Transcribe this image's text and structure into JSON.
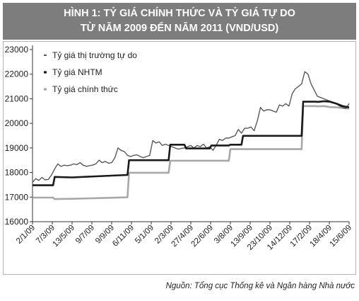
{
  "header": {
    "line1": "HÌNH 1: TỶ GIÁ CHÍNH THỨC VÀ TỶ GIÁ TỰ DO",
    "line2": "TỪ NĂM 2009 ĐẾN NĂM 2011 (VND/USD)"
  },
  "source": "Nguồn: Tổng cục Thống kê và Ngân hàng Nhà nước",
  "chart_data": {
    "type": "line",
    "title": "HÌNH 1: TỶ GIÁ CHÍNH THỨC VÀ TỶ GIÁ TỰ DO TỪ NĂM 2009 ĐẾN NĂM 2011 (VND/USD)",
    "ylim": [
      16000,
      23000
    ],
    "yticks": [
      16000,
      17000,
      18000,
      19000,
      20000,
      21000,
      22000,
      23000
    ],
    "xlim": [
      0,
      1
    ],
    "xticks": [
      {
        "label": "2/1/09",
        "x": 0.0
      },
      {
        "label": "7/3/09",
        "x": 0.0625
      },
      {
        "label": "13/5/09",
        "x": 0.125
      },
      {
        "label": "9/7/09",
        "x": 0.1875
      },
      {
        "label": "9/9/09",
        "x": 0.25
      },
      {
        "label": "6/11/09",
        "x": 0.3125
      },
      {
        "label": "5/1/09",
        "x": 0.375
      },
      {
        "label": "2/3/09",
        "x": 0.4375
      },
      {
        "label": "27/4/09",
        "x": 0.5
      },
      {
        "label": "22/6/09",
        "x": 0.5625
      },
      {
        "label": "3/8/09",
        "x": 0.625
      },
      {
        "label": "13/9/09",
        "x": 0.6875
      },
      {
        "label": "23/10/09",
        "x": 0.75
      },
      {
        "label": "14/12/09",
        "x": 0.8125
      },
      {
        "label": "17/2/09",
        "x": 0.875
      },
      {
        "label": "18/4/09",
        "x": 0.9375
      },
      {
        "label": "15/6/09",
        "x": 1.0
      }
    ],
    "legend": "top-left",
    "grid": false,
    "series": [
      {
        "name": "Tỷ giá thị trường tự do",
        "color": "#595959",
        "x": [
          0.0,
          0.01,
          0.02,
          0.03,
          0.04,
          0.05,
          0.06,
          0.07,
          0.08,
          0.09,
          0.1,
          0.11,
          0.12,
          0.13,
          0.14,
          0.15,
          0.16,
          0.17,
          0.18,
          0.19,
          0.2,
          0.21,
          0.22,
          0.23,
          0.24,
          0.25,
          0.26,
          0.27,
          0.28,
          0.29,
          0.3,
          0.31,
          0.32,
          0.33,
          0.34,
          0.35,
          0.36,
          0.37,
          0.38,
          0.39,
          0.4,
          0.41,
          0.42,
          0.43,
          0.44,
          0.45,
          0.46,
          0.47,
          0.48,
          0.49,
          0.5,
          0.51,
          0.52,
          0.53,
          0.54,
          0.55,
          0.56,
          0.57,
          0.58,
          0.59,
          0.6,
          0.61,
          0.62,
          0.63,
          0.64,
          0.65,
          0.66,
          0.67,
          0.68,
          0.69,
          0.7,
          0.71,
          0.72,
          0.73,
          0.74,
          0.75,
          0.76,
          0.77,
          0.78,
          0.79,
          0.8,
          0.81,
          0.82,
          0.83,
          0.84,
          0.85,
          0.86,
          0.87,
          0.88,
          0.89,
          0.9,
          0.91,
          0.92,
          0.93,
          0.94,
          0.95,
          0.96,
          0.97,
          0.98,
          0.99,
          1.0
        ],
        "values": [
          17600,
          17750,
          17680,
          17800,
          17700,
          17720,
          17900,
          18150,
          18350,
          18250,
          18300,
          18280,
          18300,
          18350,
          18320,
          18400,
          18300,
          18250,
          18280,
          18300,
          18350,
          18500,
          18400,
          18450,
          18380,
          18400,
          18600,
          19000,
          18900,
          18850,
          18700,
          18650,
          18700,
          18720,
          18650,
          18600,
          18650,
          18700,
          19300,
          19200,
          19250,
          19100,
          19150,
          19100,
          19050,
          19000,
          18950,
          18980,
          19000,
          19050,
          19100,
          19000,
          19100,
          19050,
          19150,
          19000,
          19050,
          18900,
          19100,
          19350,
          19300,
          19400,
          19400,
          19450,
          19500,
          19750,
          19600,
          19800,
          19800,
          19850,
          19700,
          20100,
          20650,
          20500,
          20550,
          20550,
          20500,
          20450,
          20750,
          20700,
          20800,
          20700,
          21200,
          21400,
          21500,
          21600,
          22100,
          22000,
          21600,
          21350,
          21100,
          21050,
          21000,
          20950,
          20900,
          20850,
          20800,
          20700,
          20650,
          20600,
          20800
        ]
      },
      {
        "name": "Tỷ giá NHTM",
        "color": "#1a1a1a",
        "x": [
          0.0,
          0.065,
          0.07,
          0.125,
          0.3,
          0.305,
          0.37,
          0.375,
          0.43,
          0.435,
          0.48,
          0.485,
          0.56,
          0.565,
          0.62,
          0.625,
          0.66,
          0.665,
          0.71,
          0.715,
          0.755,
          0.76,
          0.85,
          0.855,
          0.895,
          0.9,
          0.92,
          0.94,
          0.96,
          0.98,
          1.0
        ],
        "values": [
          17480,
          17480,
          17820,
          17800,
          17900,
          18500,
          18500,
          18500,
          18500,
          19130,
          19130,
          18980,
          18980,
          19100,
          19100,
          19130,
          19130,
          19490,
          19490,
          19490,
          19490,
          19490,
          19490,
          20880,
          20880,
          20870,
          20900,
          20880,
          20800,
          20700,
          20650
        ]
      },
      {
        "name": "Tỷ giá chính thức",
        "color": "#a8a8a8",
        "x": [
          0.0,
          0.065,
          0.07,
          0.125,
          0.3,
          0.305,
          0.37,
          0.375,
          0.43,
          0.435,
          0.48,
          0.485,
          0.56,
          0.565,
          0.62,
          0.625,
          0.85,
          0.855,
          0.895,
          0.9,
          0.92,
          0.94,
          0.96,
          0.98,
          1.0
        ],
        "values": [
          16980,
          16980,
          16920,
          16930,
          16990,
          17990,
          17990,
          17990,
          17990,
          18480,
          18480,
          18480,
          18480,
          18480,
          18480,
          18950,
          18950,
          20700,
          20700,
          20690,
          20700,
          20660,
          20650,
          20620,
          20600
        ]
      }
    ]
  }
}
